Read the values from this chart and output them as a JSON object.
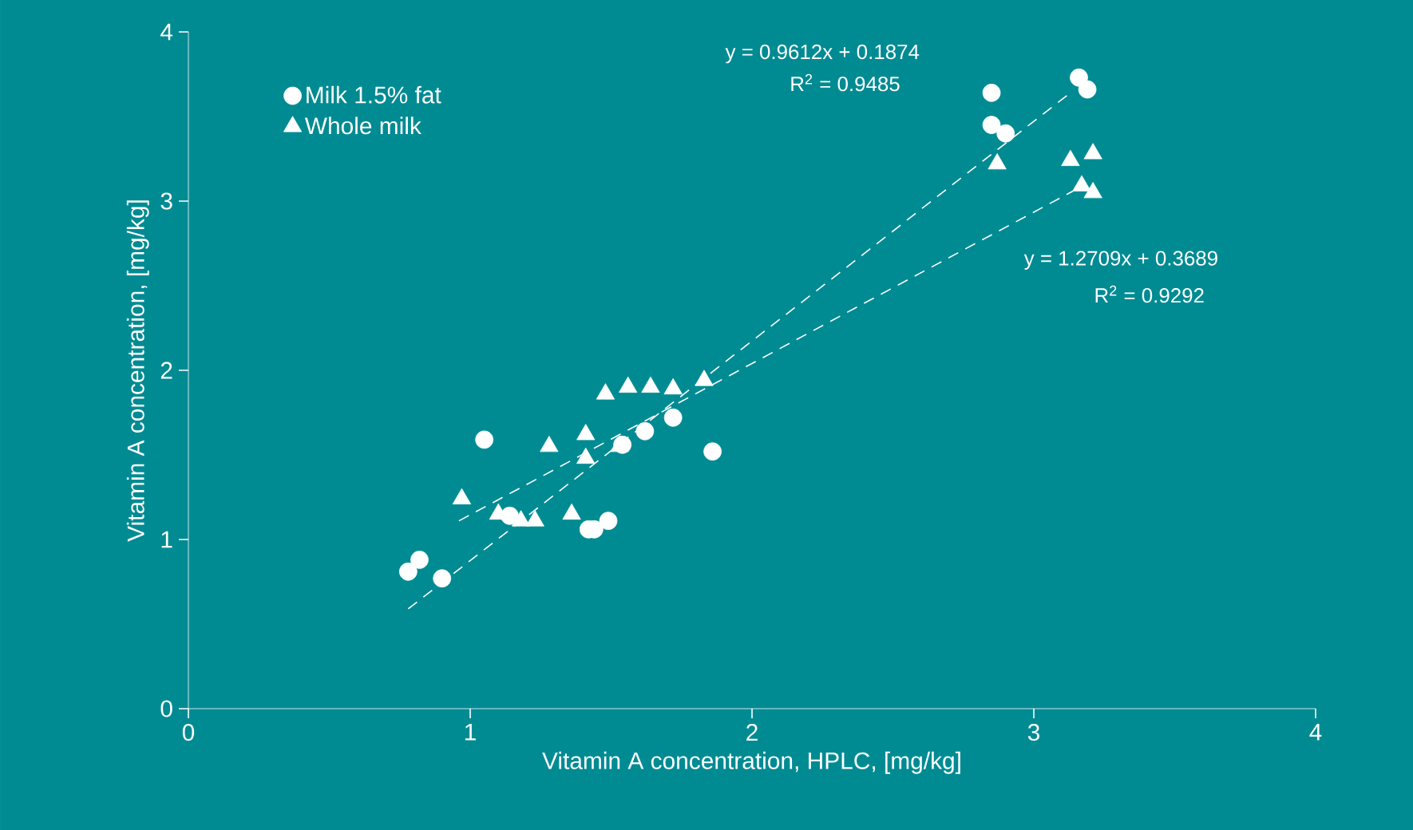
{
  "chart_data": {
    "type": "scatter",
    "xlabel": "Vitamin A concentration, HPLC, [mg/kg]",
    "ylabel": "Vitamin A concentration, [mg/kg]",
    "xlim": [
      0,
      4
    ],
    "ylim": [
      0,
      4
    ],
    "xticks": [
      0,
      1,
      2,
      3,
      4
    ],
    "yticks": [
      0,
      1,
      2,
      3,
      4
    ],
    "grid": false,
    "legend": "top left",
    "annotations": [
      "y = 0.9612x   + 0.1874",
      "R$^{2}$ = 0.9485",
      "y = 1.2709x + 0.3689",
      "R$^{2}$ = 0.9292"
    ],
    "series": [
      {
        "name": "Milk 1.5% fat",
        "marker": "circle",
        "color": "#ffffff",
        "x": [
          0.78,
          0.82,
          0.9,
          1.05,
          1.14,
          1.42,
          1.44,
          1.49,
          1.54,
          1.62,
          1.72,
          1.86,
          2.85,
          2.85,
          2.9,
          3.16,
          3.19
        ],
        "values": [
          0.81,
          0.88,
          0.77,
          1.59,
          1.14,
          1.06,
          1.06,
          1.11,
          1.56,
          1.64,
          1.72,
          1.52,
          3.64,
          3.45,
          3.4,
          3.73,
          3.66
        ]
      },
      {
        "name": "Whole milk",
        "marker": "triangle",
        "color": "#ffffff",
        "x": [
          0.97,
          1.1,
          1.18,
          1.23,
          1.28,
          1.36,
          1.41,
          1.41,
          1.53,
          1.48,
          1.56,
          1.64,
          1.72,
          1.83,
          2.87,
          3.13,
          3.21,
          3.17,
          3.21
        ],
        "values": [
          1.24,
          1.15,
          1.11,
          1.11,
          1.55,
          1.15,
          1.62,
          1.48,
          1.55,
          1.86,
          1.9,
          1.9,
          1.89,
          1.94,
          3.22,
          3.24,
          3.28,
          3.09,
          3.05
        ]
      },
      {
        "type": "line",
        "line_style": "dashed",
        "marker": "none",
        "color": "#ffffff",
        "x": [
          0.78,
          3.13
        ],
        "values": [
          0.59,
          3.64
        ]
      },
      {
        "type": "line",
        "line_style": "dashed",
        "marker": "none",
        "color": "#ffffff",
        "x": [
          0.96,
          3.14
        ],
        "values": [
          1.11,
          3.06
        ]
      }
    ]
  }
}
